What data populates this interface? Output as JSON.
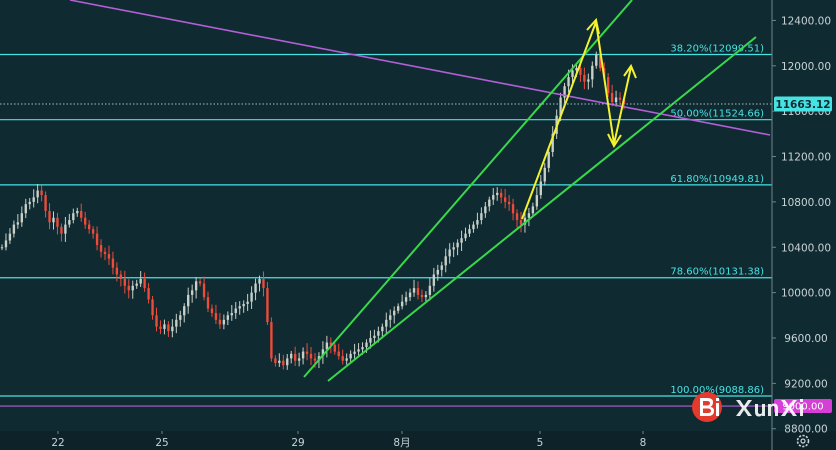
{
  "chart_data": {
    "type": "candlestick",
    "title": "",
    "xlabel": "",
    "ylabel": "",
    "ylim": [
      8780,
      12580
    ],
    "y_ticks": [
      "12400.00",
      "12000.00",
      "11600.00",
      "11200.00",
      "10800.00",
      "10400.00",
      "10000.00",
      "9600.00",
      "9200.00",
      "8800.00"
    ],
    "x_ticks": [
      "22",
      "25",
      "29",
      "8月",
      "5",
      "8"
    ],
    "current_price": {
      "value": 11663.12,
      "label": "11663.12",
      "color": "#47e3e3"
    },
    "level_badge": {
      "value": 9000,
      "label": "9000.00",
      "color": "#d63fd6"
    },
    "fib_levels": [
      {
        "label": "38.20%(12099.51)",
        "value": 12099.51
      },
      {
        "label": "50.00%(11524.66)",
        "value": 11524.66
      },
      {
        "label": "61.80%(10949.81)",
        "value": 10949.81
      },
      {
        "label": "78.60%(10131.38)",
        "value": 10131.38
      },
      {
        "label": "100.00%(9088.86)",
        "value": 9088.86
      }
    ],
    "colors": {
      "background": "#0f2a31",
      "candle_up": "#c8d0c8",
      "candle_down": "#ef4b3a",
      "fib": "#47e3e3",
      "trendline": "#b35fd6",
      "channel": "#39d84a",
      "path": "#f2f22e"
    },
    "candles_close": [
      10400,
      10460,
      10520,
      10600,
      10620,
      10700,
      10780,
      10800,
      10840,
      10900,
      10860,
      10720,
      10620,
      10660,
      10580,
      10520,
      10600,
      10640,
      10700,
      10720,
      10660,
      10600,
      10560,
      10520,
      10420,
      10360,
      10340,
      10300,
      10220,
      10160,
      10120,
      10060,
      10020,
      10060,
      10080,
      10120,
      10040,
      9940,
      9800,
      9700,
      9680,
      9720,
      9660,
      9700,
      9760,
      9800,
      9880,
      9980,
      10020,
      10100,
      10080,
      9960,
      9860,
      9820,
      9760,
      9720,
      9760,
      9800,
      9820,
      9860,
      9880,
      9900,
      9920,
      10000,
      10080,
      10120,
      10040,
      9740,
      9420,
      9380,
      9400,
      9360,
      9420,
      9460,
      9400,
      9420,
      9480,
      9460,
      9420,
      9400,
      9440,
      9500,
      9560,
      9540,
      9480,
      9440,
      9400,
      9420,
      9460,
      9480,
      9500,
      9520,
      9560,
      9600,
      9620,
      9660,
      9700,
      9760,
      9800,
      9840,
      9880,
      9920,
      9960,
      10000,
      10040,
      9980,
      9960,
      9980,
      10060,
      10160,
      10200,
      10240,
      10320,
      10380,
      10400,
      10440,
      10480,
      10520,
      10560,
      10600,
      10640,
      10700,
      10760,
      10820,
      10860,
      10880,
      10840,
      10800,
      10780,
      10700,
      10640,
      10600,
      10660,
      10700,
      10760,
      10860,
      10980,
      11100,
      11240,
      11400,
      11560,
      11720,
      11820,
      11900,
      11960,
      11980,
      11920,
      11860,
      11880,
      12000,
      12100,
      11980,
      11900,
      11760,
      11680,
      11720,
      11700,
      11663.12
    ]
  }
}
